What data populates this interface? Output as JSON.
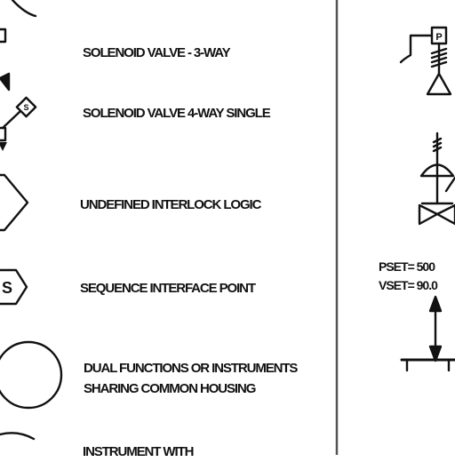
{
  "legend": {
    "items": [
      {
        "label": "SOLENOID VALVE - 3-WAY",
        "symbol": "solenoid-3way-symbol"
      },
      {
        "label": "SOLENOID VALVE 4-WAY SINGLE",
        "symbol": "solenoid-4way-symbol"
      },
      {
        "label": "UNDEFINED INTERLOCK LOGIC",
        "symbol": "interlock-diamond-symbol"
      },
      {
        "label": "SEQUENCE INTERFACE POINT",
        "symbol": "sequence-hexagon-symbol"
      },
      {
        "label_line1": "DUAL FUNCTIONS OR INSTRUMENTS",
        "label_line2": "SHARING COMMON HOUSING",
        "symbol": "circle-symbol"
      },
      {
        "label": "INSTRUMENT WITH",
        "symbol": "instrument-circle-symbol"
      }
    ],
    "solenoid_letter": "S",
    "sequence_letter": "S"
  },
  "right_panel": {
    "actuator_letter": "P",
    "pset_text": "PSET= 500",
    "vset_text": "VSET= 90.0"
  },
  "colors": {
    "ink": "#111111",
    "background": "#ffffff",
    "divider": "#555555"
  }
}
